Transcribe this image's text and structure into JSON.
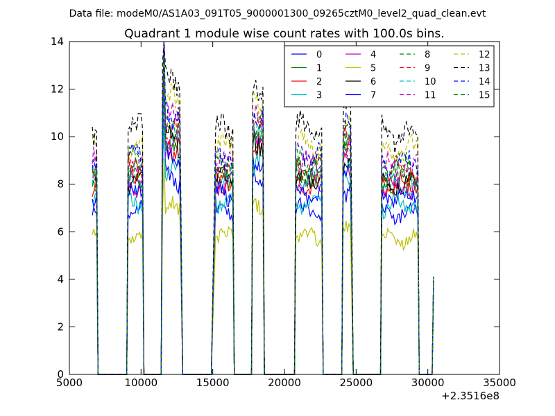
{
  "suptitle": "Data file: modeM0/AS1A03_091T05_9000001300_09265cztM0_level2_quad_clean.evt",
  "chart_data": {
    "type": "line",
    "title": "Quadrant 1 module wise count rates with 100.0s bins.",
    "xlabel": "",
    "ylabel": "",
    "offset_text": "+2.3516e8",
    "xlim": [
      5000,
      35000
    ],
    "ylim": [
      0,
      14
    ],
    "xticks": [
      5000,
      10000,
      15000,
      20000,
      25000,
      30000,
      35000
    ],
    "yticks": [
      0,
      2,
      4,
      6,
      8,
      10,
      12,
      14
    ],
    "grid": false,
    "legend": {
      "placement": "top-right",
      "ncol": 4
    },
    "segments": [
      {
        "start": 6600,
        "end": 6900,
        "post": 7000
      },
      {
        "start": 9100,
        "end": 10100,
        "pre": 9000,
        "post": 10200
      },
      {
        "start": 11500,
        "end": 12700,
        "pre": 11400,
        "post": 12900
      },
      {
        "start": 15200,
        "end": 16400,
        "pre": 14900,
        "post": 16500
      },
      {
        "start": 17800,
        "end": 18500,
        "pre": 17700,
        "post": 18600
      },
      {
        "start": 20800,
        "end": 22600,
        "pre": 20700,
        "post": 22700
      },
      {
        "start": 24100,
        "end": 24600,
        "pre": 24000,
        "post": 24800
      },
      {
        "start": 26800,
        "end": 29300,
        "pre": 26700,
        "post": 29400
      },
      {
        "start": 30400,
        "end": 30400,
        "pre": 30300
      }
    ],
    "series": [
      {
        "name": "0",
        "color": "#0000ff",
        "style": "solid",
        "level": 6.9
      },
      {
        "name": "1",
        "color": "#008000",
        "style": "solid",
        "level": 8.4
      },
      {
        "name": "2",
        "color": "#ff0000",
        "style": "solid",
        "level": 8.1
      },
      {
        "name": "3",
        "color": "#00bfbf",
        "style": "solid",
        "level": 7.3
      },
      {
        "name": "4",
        "color": "#bf00bf",
        "style": "solid",
        "level": 8.0
      },
      {
        "name": "5",
        "color": "#bfbf00",
        "style": "solid",
        "level": 5.8
      },
      {
        "name": "6",
        "color": "#000000",
        "style": "solid",
        "level": 8.2
      },
      {
        "name": "7",
        "color": "#0000ff",
        "style": "solid",
        "level": 7.6
      },
      {
        "name": "8",
        "color": "#008000",
        "style": "dashed",
        "level": 9.0
      },
      {
        "name": "9",
        "color": "#ff0000",
        "style": "dashed",
        "level": 8.7
      },
      {
        "name": "10",
        "color": "#00bfbf",
        "style": "dashed",
        "level": 8.2
      },
      {
        "name": "11",
        "color": "#bf00bf",
        "style": "dashed",
        "level": 8.9
      },
      {
        "name": "12",
        "color": "#bfbf00",
        "style": "dashed",
        "level": 9.6
      },
      {
        "name": "13",
        "color": "#000000",
        "style": "dashed",
        "level": 10.3
      },
      {
        "name": "14",
        "color": "#0000ff",
        "style": "dashed",
        "level": 9.2
      },
      {
        "name": "15",
        "color": "#008000",
        "style": "dashed",
        "level": 8.5
      }
    ],
    "segment_gain": [
      1.0,
      1.0,
      1.2,
      1.0,
      1.2,
      1.0,
      1.12,
      0.98,
      0.45
    ]
  }
}
